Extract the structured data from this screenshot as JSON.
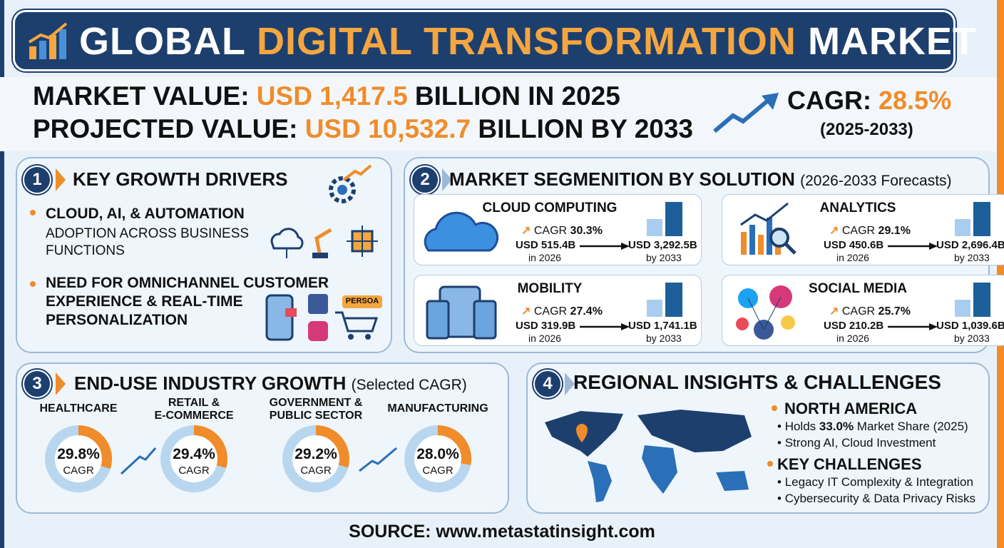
{
  "header": {
    "title_parts": [
      "GLOBAL ",
      "DIGITAL TRANSFORMATION",
      " MARKET"
    ]
  },
  "summary": {
    "market_value": {
      "prefix": "MARKET VALUE: ",
      "value": "USD 1,417.5",
      "suffix": " BILLION IN 2025"
    },
    "projected_value": {
      "prefix": "PROJECTED VALUE: ",
      "value": "USD 10,532.7",
      "suffix": " BILLION BY 2033"
    },
    "cagr": {
      "label": "CAGR: ",
      "value": "28.5%",
      "period": "(2025-2033)"
    }
  },
  "drivers": {
    "number": "1",
    "title": "KEY GROWTH DRIVERS",
    "items": [
      {
        "bold": "CLOUD, AI, & AUTOMATION",
        "text": "ADOPTION ACROSS BUSINESS FUNCTIONS"
      },
      {
        "bold": "NEED FOR OMNICHANNEL CUSTOMER EXPERIENCE & REAL-TIME PERSONALIZATION"
      }
    ],
    "icon_label": "PERSOA"
  },
  "segmentation": {
    "number": "2",
    "title": "MARKET SEGMENITION BY SOLUTION",
    "subtitle": "(2026-2033 Forecasts)",
    "segments": [
      {
        "name": "CLOUD COMPUTING",
        "cagr_label": "CAGR",
        "cagr": "30.3%",
        "start": "USD 515.4B",
        "start_year": "in 2026",
        "end": "USD 3,292.5B",
        "end_year": "by 2033"
      },
      {
        "name": "ANALYTICS",
        "cagr_label": "CAGR",
        "cagr": "29.1%",
        "start": "USD 450.6B",
        "start_year": "in 2026",
        "end": "USD 2,696.4B",
        "end_year": "by 2033"
      },
      {
        "name": "MOBILITY",
        "cagr_label": "CAGR",
        "cagr": "27.4%",
        "start": "USD 319.9B",
        "start_year": "in 2026",
        "end": "USD 1,741.1B",
        "end_year": "by 2033"
      },
      {
        "name": "SOCIAL MEDIA",
        "cagr_label": "CAGR",
        "cagr": "25.7%",
        "start": "USD 210.2B",
        "start_year": "in 2026",
        "end": "USD 1,039.6B",
        "end_year": "by 2033"
      }
    ]
  },
  "industries": {
    "number": "3",
    "title": "END-USE INDUSTRY GROWTH",
    "subtitle": "(Selected CAGR)",
    "items": [
      {
        "name": "HEALTHCARE",
        "value": 29.8,
        "label": "29.8%",
        "unit": "CAGR"
      },
      {
        "name": "RETAIL &\nE-COMMERCE",
        "value": 29.4,
        "label": "29.4%",
        "unit": "CAGR"
      },
      {
        "name": "GOVERNMENT &\nPUBLIC SECTOR",
        "value": 29.2,
        "label": "29.2%",
        "unit": "CAGR"
      },
      {
        "name": "MANUFACTURING",
        "value": 28.0,
        "label": "28.0%",
        "unit": "CAGR"
      }
    ]
  },
  "regional": {
    "number": "4",
    "title": "REGIONAL INSIGHTS & CHALLENGES",
    "north_america": {
      "heading": "NORTH AMERICA",
      "bullet1": {
        "pre": "Holds ",
        "bold": "33.0%",
        "post": " Market Share (2025)"
      },
      "bullet2": "Strong AI, Cloud Investment"
    },
    "challenges": {
      "heading": "KEY CHALLENGES",
      "bullets": [
        "Legacy IT Complexity & Integration",
        "Cybersecurity & Data Privacy Risks"
      ]
    }
  },
  "source": "SOURCE: www.metastatinsight.com"
}
